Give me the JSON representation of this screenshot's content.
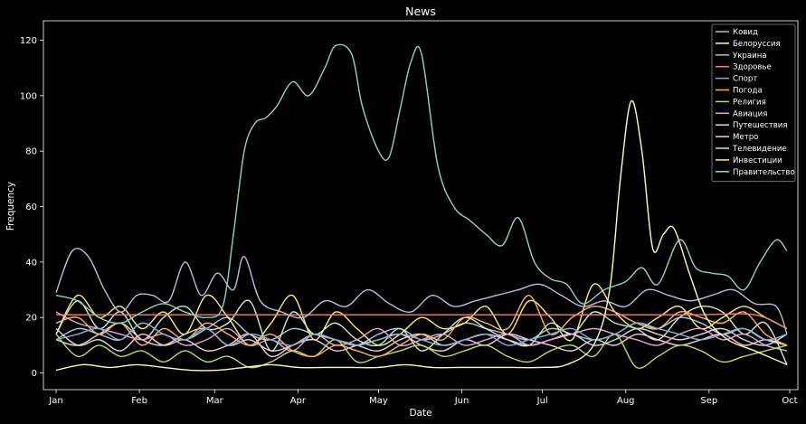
{
  "chart_data": {
    "type": "line",
    "title": "News",
    "xlabel": "Date",
    "ylabel": "Frequency",
    "xlim": [
      0,
      272
    ],
    "ylim": [
      -6,
      127
    ],
    "x_ticks": [
      {
        "label": "Jan",
        "value": 0
      },
      {
        "label": "Feb",
        "value": 31
      },
      {
        "label": "Mar",
        "value": 59
      },
      {
        "label": "Apr",
        "value": 90
      },
      {
        "label": "May",
        "value": 120
      },
      {
        "label": "Jun",
        "value": 151
      },
      {
        "label": "Jul",
        "value": 181
      },
      {
        "label": "Aug",
        "value": 212
      },
      {
        "label": "Sep",
        "value": 243
      },
      {
        "label": "Oct",
        "value": 273
      }
    ],
    "y_ticks": [
      0,
      20,
      40,
      60,
      80,
      100,
      120
    ],
    "grid": false,
    "legend": "top-right",
    "series": [
      {
        "name": "Ковид",
        "color": "#8dd3c7",
        "x": [
          0,
          8,
          16,
          24,
          32,
          40,
          48,
          56,
          62,
          66,
          70,
          74,
          78,
          82,
          88,
          94,
          100,
          104,
          110,
          114,
          120,
          124,
          128,
          132,
          136,
          142,
          148,
          154,
          160,
          166,
          172,
          178,
          184,
          190,
          196,
          204,
          212,
          218,
          224,
          232,
          238,
          244,
          250,
          256,
          262,
          268,
          272
        ],
        "y": [
          28,
          26,
          20,
          18,
          22,
          25,
          22,
          20,
          24,
          50,
          80,
          90,
          92,
          96,
          105,
          100,
          110,
          118,
          115,
          96,
          80,
          78,
          95,
          112,
          115,
          75,
          60,
          55,
          50,
          46,
          56,
          40,
          34,
          32,
          25,
          30,
          33,
          38,
          32,
          48,
          38,
          36,
          35,
          30,
          40,
          48,
          44
        ]
      },
      {
        "name": "Белоруссия",
        "color": "#ffffb3",
        "x": [
          0,
          10,
          20,
          30,
          40,
          50,
          60,
          70,
          80,
          90,
          100,
          110,
          120,
          130,
          140,
          150,
          160,
          170,
          180,
          190,
          200,
          206,
          210,
          214,
          218,
          222,
          226,
          230,
          236,
          242,
          250,
          260,
          272
        ],
        "y": [
          1,
          3,
          2,
          3,
          2,
          1,
          1,
          2,
          3,
          2,
          2,
          2,
          2,
          3,
          2,
          2,
          2,
          2,
          2,
          3,
          10,
          30,
          70,
          98,
          80,
          45,
          50,
          52,
          35,
          20,
          12,
          8,
          3
        ]
      },
      {
        "name": "Украина",
        "color": "#bebada",
        "x": [
          0,
          6,
          12,
          18,
          24,
          30,
          36,
          42,
          48,
          54,
          60,
          66,
          70,
          76,
          84,
          92,
          100,
          108,
          116,
          124,
          132,
          140,
          148,
          156,
          164,
          172,
          180,
          188,
          196,
          204,
          212,
          220,
          228,
          236,
          244,
          252,
          260,
          268,
          272
        ],
        "y": [
          29,
          44,
          42,
          30,
          22,
          28,
          28,
          26,
          40,
          28,
          36,
          30,
          42,
          26,
          22,
          20,
          26,
          24,
          30,
          25,
          22,
          28,
          24,
          26,
          28,
          30,
          32,
          28,
          24,
          26,
          24,
          30,
          28,
          26,
          28,
          30,
          25,
          24,
          14
        ]
      },
      {
        "name": "Здоровье",
        "color": "#fb8072",
        "x": [
          0,
          20,
          40,
          60,
          80,
          100,
          120,
          140,
          160,
          180,
          200,
          220,
          240,
          260,
          272
        ],
        "y": [
          21,
          21,
          21,
          21,
          21,
          21,
          21,
          21,
          21,
          21,
          21,
          21,
          21,
          21,
          16
        ]
      },
      {
        "name": "Спорт",
        "color": "#80b1d3",
        "x": [
          0,
          8,
          16,
          24,
          32,
          40,
          48,
          56,
          64,
          72,
          80,
          88,
          96,
          104,
          112,
          120,
          128,
          136,
          144,
          152,
          160,
          168,
          176,
          184,
          192,
          200,
          208,
          216,
          224,
          232,
          240,
          248,
          256,
          264,
          272
        ],
        "y": [
          12,
          14,
          16,
          12,
          18,
          14,
          12,
          16,
          10,
          14,
          12,
          10,
          14,
          12,
          10,
          12,
          14,
          12,
          10,
          12,
          14,
          10,
          12,
          14,
          16,
          12,
          14,
          18,
          16,
          14,
          12,
          14,
          16,
          12,
          14
        ]
      },
      {
        "name": "Погода",
        "color": "#fdb462",
        "x": [
          0,
          8,
          16,
          24,
          32,
          40,
          48,
          56,
          64,
          72,
          80,
          88,
          96,
          104,
          112,
          120,
          128,
          136,
          144,
          152,
          160,
          168,
          176,
          184,
          192,
          200,
          208,
          216,
          224,
          232,
          240,
          248,
          256,
          264,
          272
        ],
        "y": [
          18,
          20,
          14,
          18,
          10,
          16,
          12,
          18,
          14,
          10,
          14,
          8,
          6,
          10,
          8,
          6,
          10,
          14,
          12,
          20,
          18,
          16,
          28,
          14,
          20,
          24,
          22,
          18,
          16,
          22,
          20,
          18,
          22,
          14,
          10
        ]
      },
      {
        "name": "Религия",
        "color": "#b3de69",
        "x": [
          0,
          8,
          16,
          24,
          32,
          40,
          48,
          56,
          64,
          72,
          80,
          88,
          96,
          104,
          112,
          120,
          128,
          136,
          144,
          152,
          160,
          168,
          176,
          184,
          192,
          200,
          208,
          216,
          224,
          232,
          240,
          248,
          256,
          264,
          272
        ],
        "y": [
          14,
          6,
          10,
          6,
          8,
          4,
          8,
          4,
          6,
          2,
          4,
          8,
          6,
          12,
          4,
          6,
          8,
          10,
          6,
          8,
          10,
          6,
          4,
          8,
          10,
          6,
          14,
          2,
          6,
          10,
          8,
          4,
          6,
          8,
          10
        ]
      },
      {
        "name": "Авиация",
        "color": "#e7a6d8",
        "x": [
          0,
          8,
          16,
          24,
          32,
          40,
          48,
          56,
          64,
          72,
          80,
          88,
          96,
          104,
          112,
          120,
          128,
          136,
          144,
          152,
          160,
          168,
          176,
          184,
          192,
          200,
          208,
          216,
          224,
          232,
          240,
          248,
          256,
          264,
          272
        ],
        "y": [
          22,
          18,
          16,
          14,
          12,
          14,
          10,
          12,
          16,
          10,
          12,
          8,
          14,
          10,
          12,
          16,
          10,
          12,
          14,
          10,
          12,
          14,
          10,
          12,
          14,
          16,
          14,
          12,
          10,
          14,
          16,
          12,
          14,
          10,
          8
        ]
      },
      {
        "name": "Путешествия",
        "color": "#d9d9d9",
        "x": [
          0,
          8,
          16,
          24,
          32,
          40,
          48,
          56,
          64,
          72,
          80,
          88,
          96,
          104,
          112,
          120,
          128,
          136,
          144,
          152,
          160,
          168,
          176,
          184,
          192,
          200,
          208,
          216,
          224,
          232,
          240,
          248,
          256,
          264,
          272
        ],
        "y": [
          12,
          10,
          14,
          18,
          12,
          10,
          14,
          16,
          10,
          12,
          8,
          10,
          14,
          12,
          10,
          8,
          12,
          14,
          10,
          12,
          14,
          12,
          10,
          12,
          14,
          10,
          12,
          16,
          14,
          12,
          14,
          16,
          12,
          10,
          14
        ]
      },
      {
        "name": "Метро",
        "color": "#fccde5",
        "x": [
          0,
          8,
          16,
          24,
          32,
          40,
          48,
          56,
          64,
          72,
          80,
          88,
          96,
          104,
          112,
          120,
          128,
          136,
          144,
          152,
          160,
          168,
          176,
          184,
          192,
          200,
          208,
          216,
          224,
          232,
          240,
          248,
          256,
          264,
          272
        ],
        "y": [
          16,
          10,
          12,
          8,
          14,
          10,
          12,
          8,
          10,
          14,
          6,
          10,
          12,
          8,
          10,
          12,
          14,
          10,
          8,
          12,
          10,
          14,
          12,
          10,
          8,
          12,
          10,
          14,
          12,
          10,
          12,
          14,
          10,
          12,
          10
        ]
      },
      {
        "name": "Телевидение",
        "color": "#ccebc5",
        "x": [
          0,
          8,
          16,
          24,
          32,
          40,
          48,
          56,
          64,
          72,
          80,
          88,
          96,
          104,
          112,
          120,
          128,
          136,
          144,
          152,
          160,
          168,
          176,
          184,
          192,
          200,
          208,
          216,
          224,
          232,
          240,
          248,
          256,
          264,
          272
        ],
        "y": [
          14,
          26,
          16,
          22,
          12,
          20,
          24,
          16,
          18,
          26,
          8,
          22,
          14,
          18,
          12,
          10,
          16,
          8,
          14,
          20,
          16,
          12,
          10,
          18,
          14,
          22,
          18,
          16,
          12,
          20,
          24,
          22,
          14,
          18,
          3
        ]
      },
      {
        "name": "Инвестиции",
        "color": "#ffed6f",
        "x": [
          0,
          8,
          16,
          24,
          32,
          40,
          48,
          56,
          64,
          72,
          80,
          88,
          96,
          104,
          112,
          120,
          128,
          136,
          144,
          152,
          160,
          168,
          176,
          184,
          192,
          200,
          208,
          216,
          224,
          232,
          240,
          248,
          256,
          264,
          272
        ],
        "y": [
          14,
          28,
          20,
          24,
          16,
          22,
          14,
          28,
          20,
          10,
          18,
          28,
          12,
          22,
          16,
          10,
          14,
          20,
          16,
          18,
          24,
          14,
          26,
          20,
          12,
          32,
          22,
          16,
          20,
          24,
          16,
          20,
          24,
          20,
          16
        ]
      },
      {
        "name": "Правительство",
        "color": "#a6cee3",
        "x": [
          0,
          8,
          16,
          24,
          32,
          40,
          48,
          56,
          64,
          72,
          80,
          88,
          96,
          104,
          112,
          120,
          128,
          136,
          144,
          152,
          160,
          168,
          176,
          184,
          192,
          200,
          208,
          216,
          224,
          232,
          240,
          248,
          256,
          264,
          272
        ],
        "y": [
          12,
          16,
          14,
          12,
          18,
          14,
          12,
          16,
          20,
          14,
          12,
          16,
          14,
          12,
          10,
          14,
          16,
          12,
          14,
          18,
          16,
          14,
          12,
          16,
          14,
          12,
          14,
          18,
          16,
          20,
          18,
          14,
          16,
          12,
          10
        ]
      }
    ]
  }
}
